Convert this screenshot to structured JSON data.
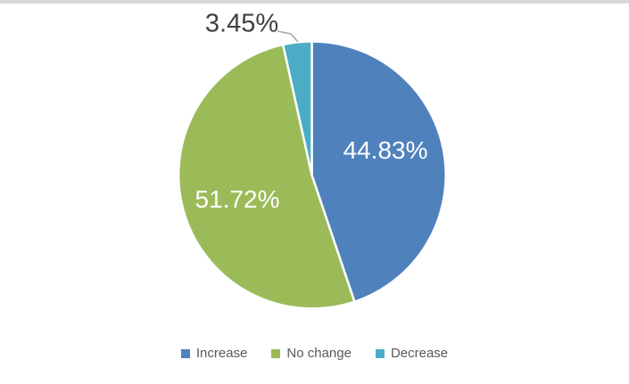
{
  "page": {
    "background": "#FFFFFF",
    "top_strip_color": "#D9D9D9"
  },
  "chart_data": {
    "type": "pie",
    "title": "",
    "categories": [
      "Increase",
      "No change",
      "Decrease"
    ],
    "values": [
      44.83,
      51.72,
      3.45
    ],
    "series": [
      {
        "name": "Increase",
        "value": 44.83,
        "display": "44.83%",
        "color": "#4F81BD",
        "label_placement": "inside",
        "label_color": "#FFFFFF"
      },
      {
        "name": "No change",
        "value": 51.72,
        "display": "51.72%",
        "color": "#9BBB59",
        "label_placement": "inside",
        "label_color": "#FFFFFF"
      },
      {
        "name": "Decrease",
        "value": 3.45,
        "display": "3.45%",
        "color": "#4BACC6",
        "label_placement": "outside",
        "label_color": "#404040"
      }
    ],
    "start_angle_deg": 0,
    "direction": "clockwise",
    "slice_border_color": "#FFFFFF",
    "leader_line_color": "#A6A6A6",
    "legend": {
      "position": "bottom",
      "text_color": "#595959",
      "entries": [
        "Increase",
        "No change",
        "Decrease"
      ]
    }
  }
}
